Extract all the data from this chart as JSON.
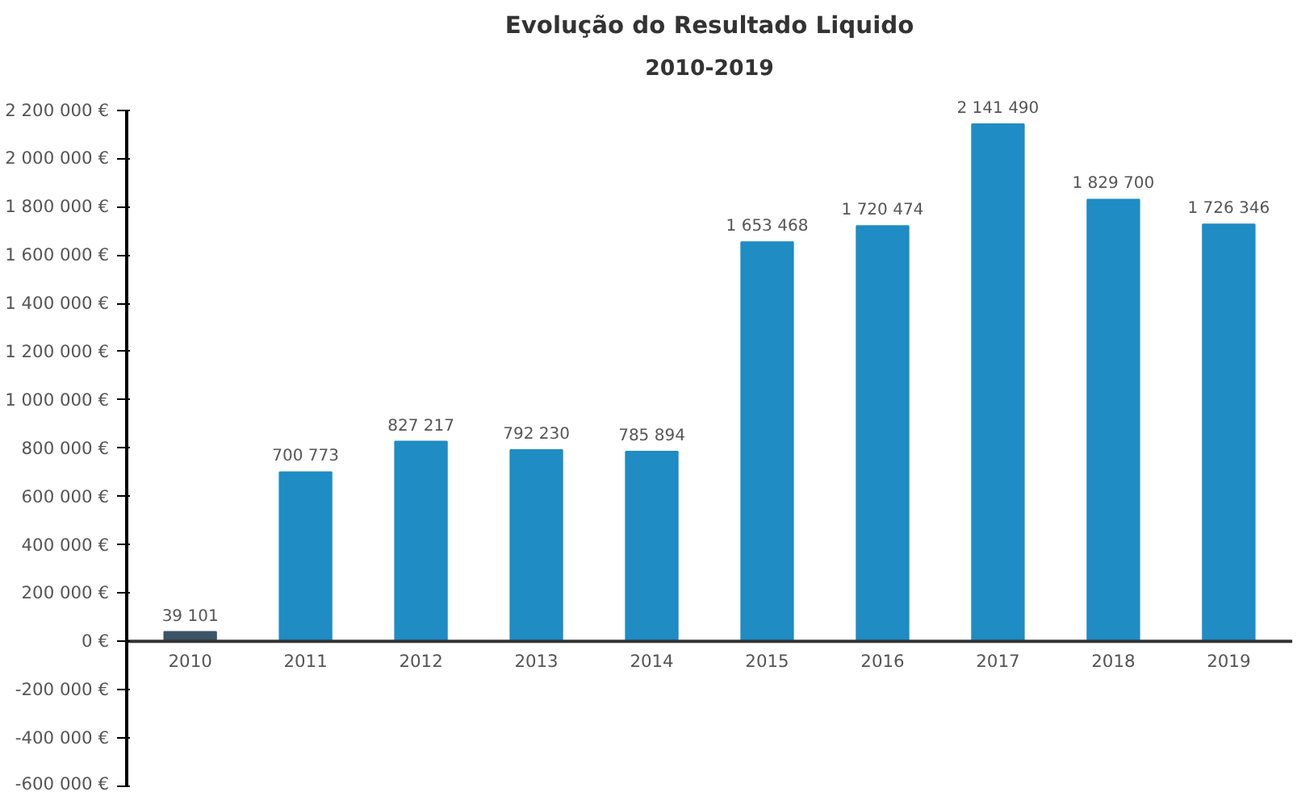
{
  "chart_data": {
    "type": "bar",
    "title": "Evolução do Resultado Liquido",
    "subtitle": "2010-2019",
    "categories": [
      "2010",
      "2011",
      "2012",
      "2013",
      "2014",
      "2015",
      "2016",
      "2017",
      "2018",
      "2019"
    ],
    "values": [
      39101,
      700773,
      827217,
      792230,
      785894,
      1653468,
      1720474,
      2141490,
      1829700,
      1726346
    ],
    "value_labels": [
      "39 101",
      "700 773",
      "827 217",
      "792 230",
      "785 894",
      "1 653 468",
      "1 720 474",
      "2 141 490",
      "1 829 700",
      "1 726 346"
    ],
    "colors": [
      "#3b5566",
      "#1f8cc4",
      "#1f8cc4",
      "#1f8cc4",
      "#1f8cc4",
      "#1f8cc4",
      "#1f8cc4",
      "#1f8cc4",
      "#1f8cc4",
      "#1f8cc4"
    ],
    "ylim": [
      -600000,
      2200000
    ],
    "yticks": [
      {
        "value": -600000,
        "label": "-600 000 €"
      },
      {
        "value": -400000,
        "label": "-400 000 €"
      },
      {
        "value": -200000,
        "label": "-200 000 €"
      },
      {
        "value": 0,
        "label": "0 €"
      },
      {
        "value": 200000,
        "label": "200 000 €"
      },
      {
        "value": 400000,
        "label": "400 000 €"
      },
      {
        "value": 600000,
        "label": "600 000 €"
      },
      {
        "value": 800000,
        "label": "800 000 €"
      },
      {
        "value": 1000000,
        "label": "1 000 000 €"
      },
      {
        "value": 1200000,
        "label": "1 200 000 €"
      },
      {
        "value": 1400000,
        "label": "1 400 000 €"
      },
      {
        "value": 1600000,
        "label": "1 600 000 €"
      },
      {
        "value": 1800000,
        "label": "1 800 000 €"
      },
      {
        "value": 2000000,
        "label": "2 000 000 €"
      },
      {
        "value": 2200000,
        "label": "2 200 000 €"
      }
    ],
    "grid": false
  }
}
